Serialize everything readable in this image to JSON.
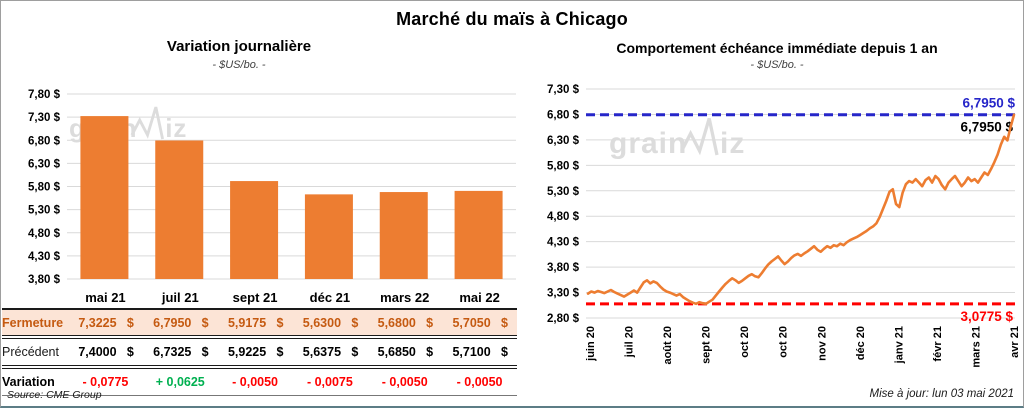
{
  "title": "Marché du maïs à Chicago",
  "left_chart": {
    "title": "Variation journalière",
    "subtitle": "- $US/bo. -"
  },
  "right_chart": {
    "title": "Comportement échéance immédiate depuis 1 an",
    "subtitle": "- $US/bo. -"
  },
  "watermark": "grainwiz",
  "colors": {
    "accent_orange": "#ED7D31",
    "close_row_bg": "#FCE4D6",
    "close_row_text": "#C55A11",
    "negative": "#FF0000",
    "positive": "#00B050",
    "ref_blue": "#2626C9",
    "ref_red": "#FF0000",
    "grid": "#D9D9D9",
    "watermark_gray": "#DCDCDC"
  },
  "table": {
    "columns": [
      "mai 21",
      "juil 21",
      "sept 21",
      "déc 21",
      "mars 22",
      "mai 22"
    ],
    "rows": [
      {
        "label": "Fermeture",
        "style": "close",
        "unit": "$",
        "values": [
          "7,3225",
          "6,7950",
          "5,9175",
          "5,6300",
          "5,6800",
          "5,7050"
        ]
      },
      {
        "label": "Précédent",
        "style": "previous",
        "unit": "$",
        "values": [
          "7,4000",
          "6,7325",
          "5,9225",
          "5,6375",
          "5,6850",
          "5,7100"
        ]
      },
      {
        "label": "Variation",
        "style": "variation",
        "values": [
          "- 0,0775",
          "+ 0,0625",
          "- 0,0050",
          "- 0,0075",
          "- 0,0050",
          "- 0,0050"
        ]
      }
    ]
  },
  "footer": {
    "source": "Source: CME Group",
    "updated": "Mise à jour: lun 03 mai 2021"
  },
  "chart_data": [
    {
      "type": "bar",
      "title": "Variation journalière",
      "subtitle": "- $US/bo. -",
      "categories": [
        "mai 21",
        "juil 21",
        "sept 21",
        "déc 21",
        "mars 22",
        "mai 22"
      ],
      "values": [
        7.3225,
        6.795,
        5.9175,
        5.63,
        5.68,
        5.705
      ],
      "ylim": [
        3.8,
        7.8
      ],
      "ytick_step": 0.5,
      "ytick_labels": [
        "7,80 $",
        "7,30 $",
        "6,80 $",
        "6,30 $",
        "5,80 $",
        "5,30 $",
        "4,80 $",
        "4,30 $",
        "3,80 $"
      ],
      "bar_color": "#ED7D31",
      "grid": true,
      "legend": "none"
    },
    {
      "type": "line",
      "title": "Comportement échéance immédiate depuis 1 an",
      "subtitle": "- $US/bo. -",
      "ylim": [
        2.8,
        7.3
      ],
      "ytick_step": 0.5,
      "ytick_labels": [
        "7,30 $",
        "6,80 $",
        "6,30 $",
        "5,80 $",
        "5,30 $",
        "4,80 $",
        "4,30 $",
        "3,80 $",
        "3,30 $",
        "2,80 $"
      ],
      "x_tick_labels": [
        "juin 20",
        "juil 20",
        "août 20",
        "sept 20",
        "oct 20",
        "oct 20",
        "nov 20",
        "déc 20",
        "janv 21",
        "févr 21",
        "mars 21",
        "avr 21"
      ],
      "line_color": "#ED7D31",
      "grid": true,
      "legend": "none",
      "last_value": 6.795,
      "ref_lines": [
        {
          "value": 6.795,
          "color": "#2626C9",
          "style": "dashed",
          "label_above": "6,7950 $",
          "label_above_color": "#2626C9",
          "label_below": "6,7950 $",
          "label_below_color": "#000000"
        },
        {
          "value": 3.0775,
          "color": "#FF0000",
          "style": "dashed",
          "label_below": "3,0775 $",
          "label_below_color": "#FF0000"
        }
      ],
      "values": [
        3.28,
        3.32,
        3.3,
        3.33,
        3.31,
        3.29,
        3.32,
        3.35,
        3.31,
        3.28,
        3.25,
        3.22,
        3.26,
        3.3,
        3.34,
        3.3,
        3.4,
        3.5,
        3.54,
        3.48,
        3.52,
        3.49,
        3.42,
        3.36,
        3.32,
        3.3,
        3.27,
        3.24,
        3.27,
        3.21,
        3.17,
        3.13,
        3.1,
        3.08,
        3.11,
        3.09,
        3.08,
        3.12,
        3.16,
        3.24,
        3.32,
        3.4,
        3.47,
        3.53,
        3.58,
        3.54,
        3.49,
        3.53,
        3.58,
        3.63,
        3.66,
        3.62,
        3.6,
        3.68,
        3.77,
        3.85,
        3.91,
        3.96,
        4.01,
        3.93,
        3.86,
        3.91,
        3.98,
        4.03,
        4.06,
        4.02,
        4.07,
        4.11,
        4.16,
        4.21,
        4.14,
        4.1,
        4.16,
        4.21,
        4.18,
        4.23,
        4.21,
        4.26,
        4.23,
        4.29,
        4.33,
        4.36,
        4.39,
        4.43,
        4.47,
        4.51,
        4.56,
        4.6,
        4.66,
        4.78,
        4.94,
        5.1,
        5.28,
        5.33,
        5.04,
        4.98,
        5.26,
        5.43,
        5.49,
        5.46,
        5.53,
        5.46,
        5.39,
        5.51,
        5.56,
        5.46,
        5.59,
        5.53,
        5.41,
        5.33,
        5.46,
        5.53,
        5.59,
        5.49,
        5.39,
        5.46,
        5.56,
        5.49,
        5.53,
        5.46,
        5.56,
        5.66,
        5.61,
        5.73,
        5.86,
        6.01,
        6.21,
        6.36,
        6.29,
        6.56,
        6.795
      ]
    }
  ]
}
